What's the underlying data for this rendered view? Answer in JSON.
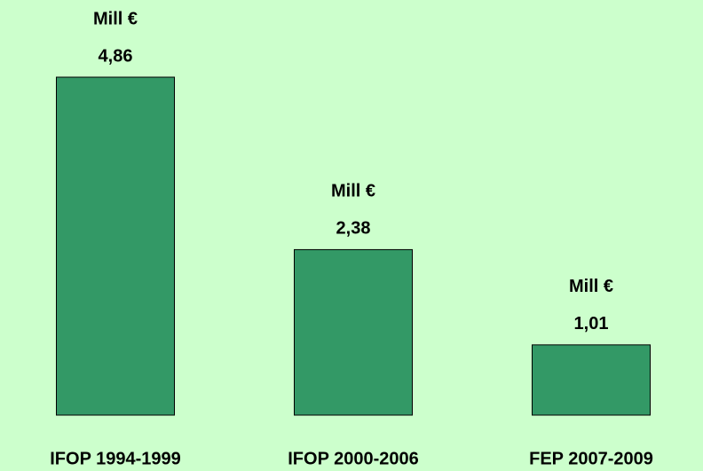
{
  "chart_data": {
    "type": "bar",
    "categories": [
      "IFOP 1994-1999",
      "IFOP 2000-2006",
      "FEP 2007-2009"
    ],
    "values": [
      4.86,
      2.38,
      1.01
    ],
    "value_labels": [
      "4,86",
      "2,38",
      "1,01"
    ],
    "unit": "Mill €",
    "color": "#339966"
  }
}
